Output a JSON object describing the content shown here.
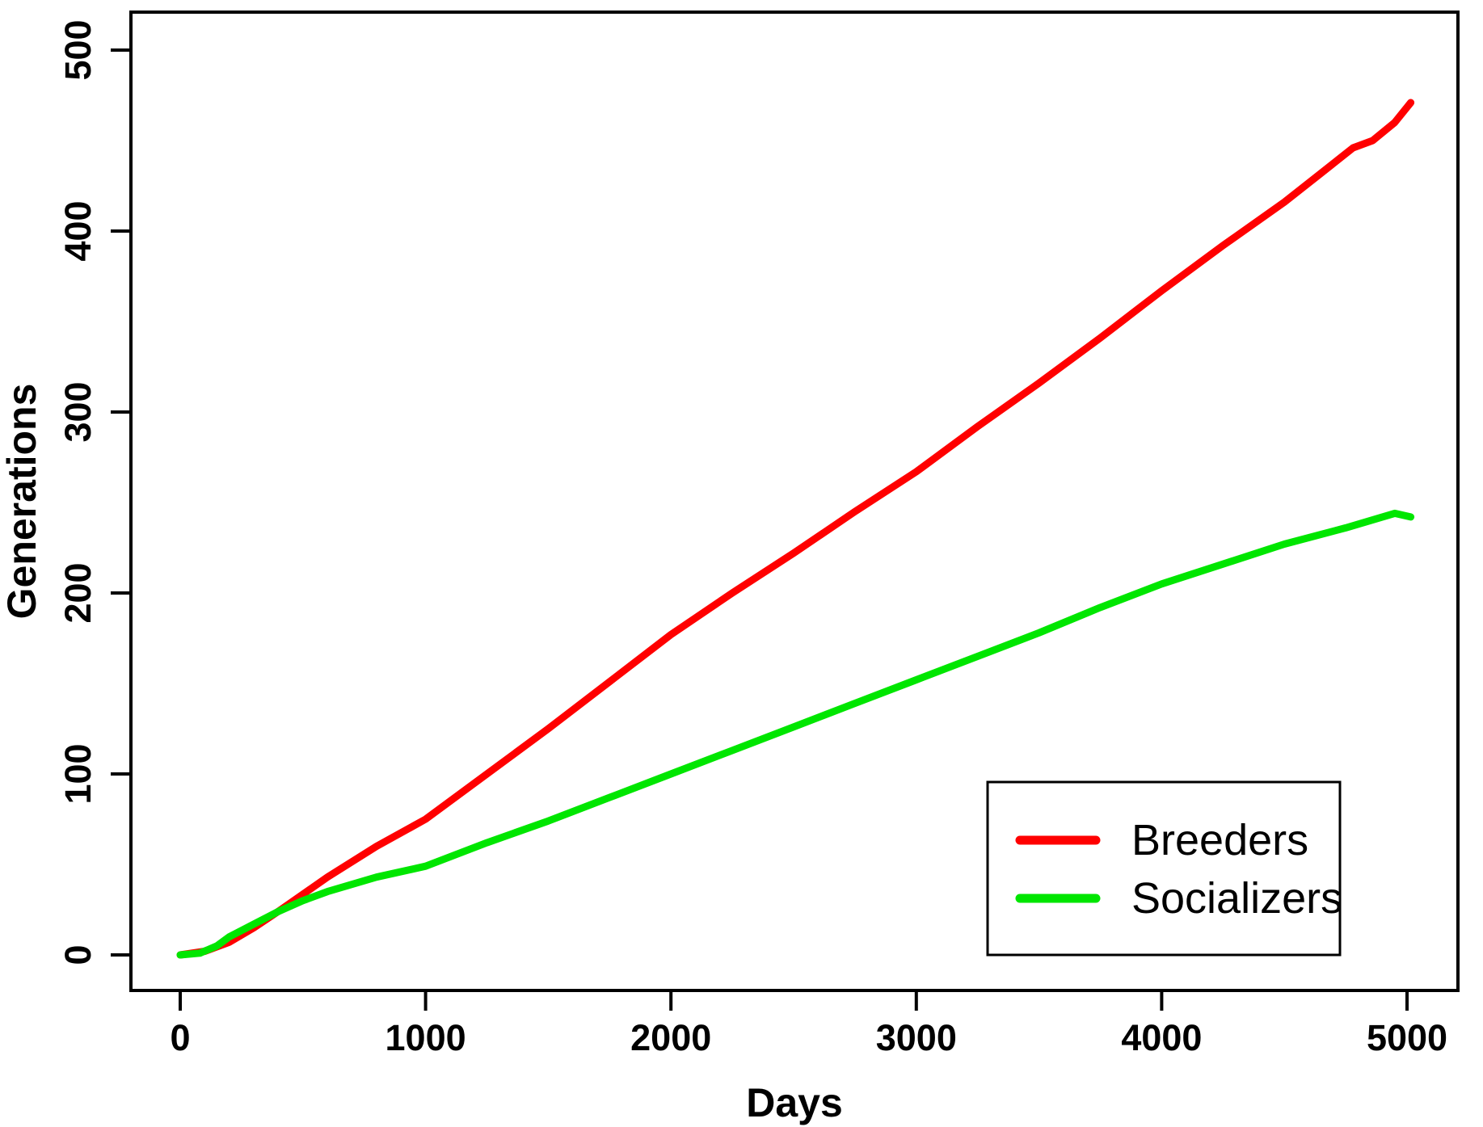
{
  "chart_data": {
    "type": "line",
    "title": "",
    "xlabel": "Days",
    "ylabel": "Generations",
    "xlim": [
      0,
      5000
    ],
    "ylim": [
      0,
      500
    ],
    "x_ticks": [
      0,
      1000,
      2000,
      3000,
      4000,
      5000
    ],
    "y_ticks": [
      0,
      100,
      200,
      300,
      400,
      500
    ],
    "grid": false,
    "background": "#ffffff",
    "axis_color": "#000000",
    "legend": {
      "position": "bottom-right",
      "entries": [
        {
          "label": "Breeders",
          "color": "#ff0000"
        },
        {
          "label": "Socializers",
          "color": "#00e600"
        }
      ]
    },
    "series": [
      {
        "name": "Breeders",
        "color": "#ff0000",
        "points": [
          [
            0,
            0
          ],
          [
            100,
            2
          ],
          [
            200,
            7
          ],
          [
            300,
            15
          ],
          [
            410,
            25
          ],
          [
            600,
            43
          ],
          [
            800,
            60
          ],
          [
            1000,
            75
          ],
          [
            1250,
            100
          ],
          [
            1500,
            125
          ],
          [
            1750,
            151
          ],
          [
            2000,
            177
          ],
          [
            2250,
            200
          ],
          [
            2500,
            222
          ],
          [
            2750,
            245
          ],
          [
            3000,
            267
          ],
          [
            3250,
            292
          ],
          [
            3500,
            316
          ],
          [
            3750,
            341
          ],
          [
            4000,
            367
          ],
          [
            4250,
            392
          ],
          [
            4500,
            416
          ],
          [
            4650,
            432
          ],
          [
            4780,
            446
          ],
          [
            4860,
            450
          ],
          [
            4950,
            460
          ],
          [
            5015,
            471
          ]
        ]
      },
      {
        "name": "Socializers",
        "color": "#00e600",
        "points": [
          [
            0,
            0
          ],
          [
            80,
            1
          ],
          [
            150,
            5
          ],
          [
            200,
            10
          ],
          [
            300,
            17
          ],
          [
            400,
            24
          ],
          [
            500,
            30
          ],
          [
            600,
            35
          ],
          [
            800,
            43
          ],
          [
            1000,
            49
          ],
          [
            1250,
            62
          ],
          [
            1500,
            74
          ],
          [
            1750,
            87
          ],
          [
            2000,
            100
          ],
          [
            2250,
            113
          ],
          [
            2500,
            126
          ],
          [
            2750,
            139
          ],
          [
            3000,
            152
          ],
          [
            3250,
            165
          ],
          [
            3500,
            178
          ],
          [
            3750,
            192
          ],
          [
            4000,
            205
          ],
          [
            4250,
            216
          ],
          [
            4500,
            227
          ],
          [
            4750,
            236
          ],
          [
            4950,
            244
          ],
          [
            5015,
            242
          ]
        ]
      }
    ]
  }
}
